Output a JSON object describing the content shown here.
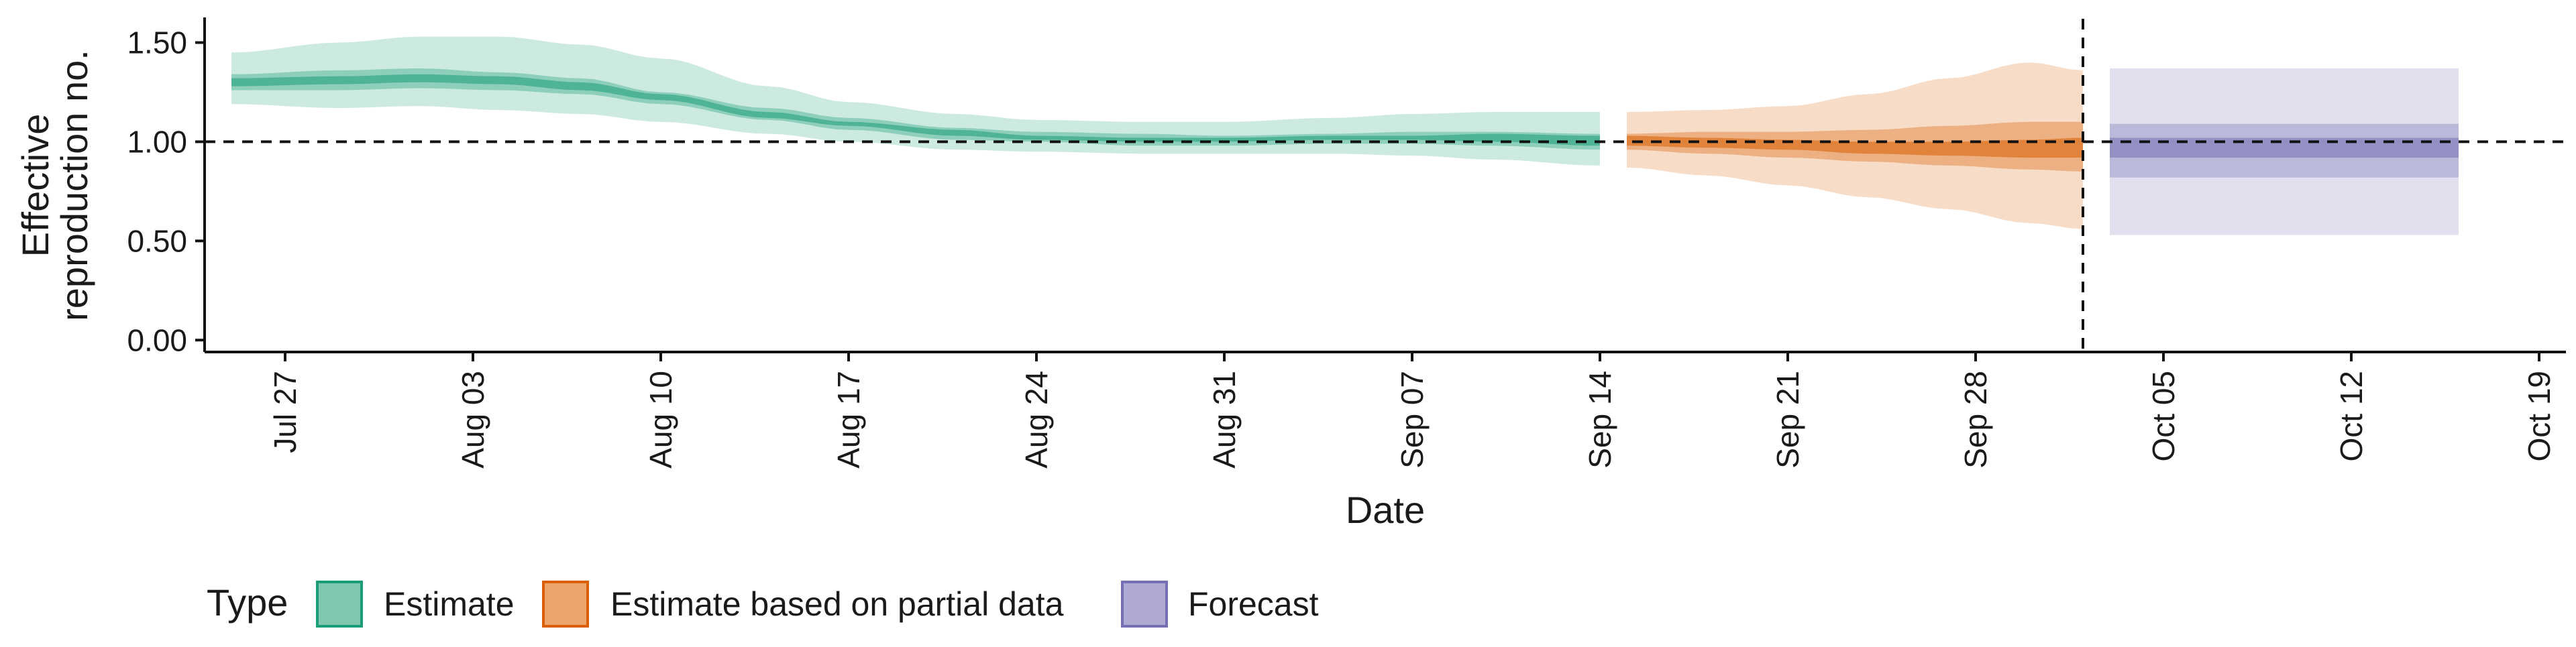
{
  "chart_data": {
    "type": "area",
    "xlabel": "Date",
    "ylabel_lines": [
      "Effective",
      "reproduction no."
    ],
    "x_range": [
      "2020-07-24",
      "2020-10-20"
    ],
    "ylim": [
      -0.06,
      1.62
    ],
    "y_ticks": [
      {
        "value": 0.0,
        "label": "0.00"
      },
      {
        "value": 0.5,
        "label": "0.50"
      },
      {
        "value": 1.0,
        "label": "1.00"
      },
      {
        "value": 1.5,
        "label": "1.50"
      }
    ],
    "x_ticks": [
      {
        "date": "2020-07-27",
        "label": "Jul 27"
      },
      {
        "date": "2020-08-03",
        "label": "Aug 03"
      },
      {
        "date": "2020-08-10",
        "label": "Aug 10"
      },
      {
        "date": "2020-08-17",
        "label": "Aug 17"
      },
      {
        "date": "2020-08-24",
        "label": "Aug 24"
      },
      {
        "date": "2020-08-31",
        "label": "Aug 31"
      },
      {
        "date": "2020-09-07",
        "label": "Sep 07"
      },
      {
        "date": "2020-09-14",
        "label": "Sep 14"
      },
      {
        "date": "2020-09-21",
        "label": "Sep 21"
      },
      {
        "date": "2020-09-28",
        "label": "Sep 28"
      },
      {
        "date": "2020-10-05",
        "label": "Oct 05"
      },
      {
        "date": "2020-10-12",
        "label": "Oct 12"
      },
      {
        "date": "2020-10-19",
        "label": "Oct 19"
      }
    ],
    "reference_hline": 1.0,
    "reference_vline": "2020-10-02",
    "grid": false,
    "legend": {
      "title": "Type",
      "position": "bottom",
      "entries": [
        {
          "label": "Estimate",
          "fill": "#7fc7ae",
          "stroke": "#1b9e77"
        },
        {
          "label": "Estimate based on partial data",
          "fill": "#eba56c",
          "stroke": "#d95f02"
        },
        {
          "label": "Forecast",
          "fill": "#aeaad3",
          "stroke": "#7570b3"
        }
      ]
    },
    "series": [
      {
        "name": "Estimate",
        "color": "#1b9e77",
        "bands": [
          {
            "level": "outer",
            "opacity": 0.22
          },
          {
            "level": "mid",
            "opacity": 0.35
          },
          {
            "level": "inner",
            "opacity": 0.55
          }
        ],
        "points": [
          {
            "x": "2020-07-25",
            "median": 1.3,
            "outer": [
              1.19,
              1.45
            ],
            "mid": [
              1.26,
              1.34
            ],
            "inner": [
              1.28,
              1.32
            ]
          },
          {
            "x": "2020-07-29",
            "median": 1.31,
            "outer": [
              1.17,
              1.5
            ],
            "mid": [
              1.26,
              1.36
            ],
            "inner": [
              1.29,
              1.33
            ]
          },
          {
            "x": "2020-08-01",
            "median": 1.33,
            "outer": [
              1.18,
              1.53
            ],
            "mid": [
              1.27,
              1.37
            ],
            "inner": [
              1.3,
              1.34
            ]
          },
          {
            "x": "2020-08-04",
            "median": 1.31,
            "outer": [
              1.16,
              1.53
            ],
            "mid": [
              1.26,
              1.35
            ],
            "inner": [
              1.29,
              1.33
            ]
          },
          {
            "x": "2020-08-07",
            "median": 1.28,
            "outer": [
              1.14,
              1.49
            ],
            "mid": [
              1.24,
              1.32
            ],
            "inner": [
              1.26,
              1.3
            ]
          },
          {
            "x": "2020-08-10",
            "median": 1.22,
            "outer": [
              1.1,
              1.42
            ],
            "mid": [
              1.19,
              1.25
            ],
            "inner": [
              1.21,
              1.24
            ]
          },
          {
            "x": "2020-08-14",
            "median": 1.14,
            "outer": [
              1.04,
              1.28
            ],
            "mid": [
              1.11,
              1.17
            ],
            "inner": [
              1.12,
              1.15
            ]
          },
          {
            "x": "2020-08-17",
            "median": 1.09,
            "outer": [
              1.0,
              1.2
            ],
            "mid": [
              1.06,
              1.12
            ],
            "inner": [
              1.08,
              1.1
            ]
          },
          {
            "x": "2020-08-21",
            "median": 1.04,
            "outer": [
              0.96,
              1.14
            ],
            "mid": [
              1.01,
              1.07
            ],
            "inner": [
              1.03,
              1.06
            ]
          },
          {
            "x": "2020-08-24",
            "median": 1.02,
            "outer": [
              0.95,
              1.11
            ],
            "mid": [
              1.0,
              1.05
            ],
            "inner": [
              1.01,
              1.03
            ]
          },
          {
            "x": "2020-08-28",
            "median": 1.01,
            "outer": [
              0.94,
              1.1
            ],
            "mid": [
              0.98,
              1.04
            ],
            "inner": [
              1.0,
              1.02
            ]
          },
          {
            "x": "2020-08-31",
            "median": 1.01,
            "outer": [
              0.94,
              1.1
            ],
            "mid": [
              0.98,
              1.03
            ],
            "inner": [
              1.0,
              1.02
            ]
          },
          {
            "x": "2020-09-04",
            "median": 1.02,
            "outer": [
              0.94,
              1.12
            ],
            "mid": [
              0.99,
              1.04
            ],
            "inner": [
              1.01,
              1.03
            ]
          },
          {
            "x": "2020-09-07",
            "median": 1.02,
            "outer": [
              0.93,
              1.14
            ],
            "mid": [
              0.99,
              1.05
            ],
            "inner": [
              1.01,
              1.03
            ]
          },
          {
            "x": "2020-09-10",
            "median": 1.02,
            "outer": [
              0.91,
              1.15
            ],
            "mid": [
              0.98,
              1.05
            ],
            "inner": [
              1.0,
              1.04
            ]
          },
          {
            "x": "2020-09-14",
            "median": 1.0,
            "outer": [
              0.88,
              1.15
            ],
            "mid": [
              0.96,
              1.04
            ],
            "inner": [
              0.98,
              1.03
            ]
          }
        ]
      },
      {
        "name": "Estimate based on partial data",
        "color": "#d95f02",
        "bands": [
          {
            "level": "outer",
            "opacity": 0.22
          },
          {
            "level": "mid",
            "opacity": 0.35
          },
          {
            "level": "inner",
            "opacity": 0.55
          }
        ],
        "points": [
          {
            "x": "2020-09-15",
            "median": 1.0,
            "outer": [
              0.87,
              1.15
            ],
            "mid": [
              0.96,
              1.04
            ],
            "inner": [
              0.98,
              1.03
            ]
          },
          {
            "x": "2020-09-18",
            "median": 0.99,
            "outer": [
              0.83,
              1.16
            ],
            "mid": [
              0.94,
              1.05
            ],
            "inner": [
              0.97,
              1.02
            ]
          },
          {
            "x": "2020-09-21",
            "median": 0.98,
            "outer": [
              0.78,
              1.18
            ],
            "mid": [
              0.92,
              1.05
            ],
            "inner": [
              0.96,
              1.01
            ]
          },
          {
            "x": "2020-09-24",
            "median": 0.97,
            "outer": [
              0.72,
              1.24
            ],
            "mid": [
              0.9,
              1.06
            ],
            "inner": [
              0.94,
              1.0
            ]
          },
          {
            "x": "2020-09-27",
            "median": 0.97,
            "outer": [
              0.66,
              1.32
            ],
            "mid": [
              0.88,
              1.08
            ],
            "inner": [
              0.93,
              1.0
            ]
          },
          {
            "x": "2020-09-30",
            "median": 0.97,
            "outer": [
              0.59,
              1.4
            ],
            "mid": [
              0.86,
              1.1
            ],
            "inner": [
              0.92,
              1.01
            ]
          },
          {
            "x": "2020-10-02",
            "median": 0.97,
            "outer": [
              0.56,
              1.36
            ],
            "mid": [
              0.85,
              1.1
            ],
            "inner": [
              0.92,
              1.02
            ]
          }
        ]
      },
      {
        "name": "Forecast",
        "color": "#7570b3",
        "bands": [
          {
            "level": "outer",
            "opacity": 0.22
          },
          {
            "level": "mid",
            "opacity": 0.35
          },
          {
            "level": "inner",
            "opacity": 0.55
          }
        ],
        "points": [
          {
            "x": "2020-10-03",
            "median": 0.97,
            "outer": [
              0.53,
              1.37
            ],
            "mid": [
              0.82,
              1.09
            ],
            "inner": [
              0.92,
              1.02
            ]
          },
          {
            "x": "2020-10-16",
            "median": 0.97,
            "outer": [
              0.53,
              1.37
            ],
            "mid": [
              0.82,
              1.09
            ],
            "inner": [
              0.92,
              1.02
            ]
          }
        ]
      }
    ]
  }
}
